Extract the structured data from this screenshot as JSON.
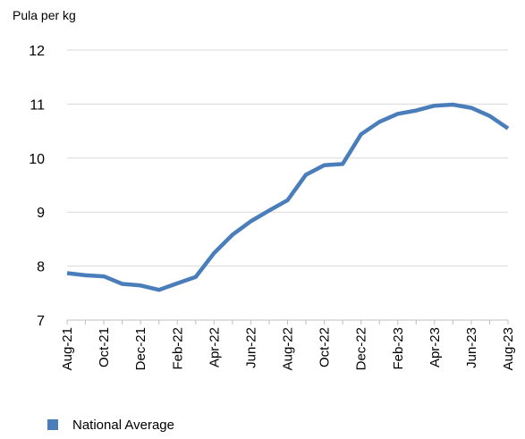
{
  "chart_data": {
    "type": "line",
    "title": "",
    "ylabel": "Pula per kg",
    "xlabel": "",
    "ylim": [
      7,
      12
    ],
    "yticks": [
      7,
      8,
      9,
      10,
      11,
      12
    ],
    "grid": true,
    "legend_position": "bottom-left",
    "x": [
      "Aug-21",
      "Sep-21",
      "Oct-21",
      "Nov-21",
      "Dec-21",
      "Jan-22",
      "Feb-22",
      "Mar-22",
      "Apr-22",
      "May-22",
      "Jun-22",
      "Jul-22",
      "Aug-22",
      "Sep-22",
      "Oct-22",
      "Nov-22",
      "Dec-22",
      "Jan-23",
      "Feb-23",
      "Mar-23",
      "Apr-23",
      "May-23",
      "Jun-23",
      "Jul-23",
      "Aug-23"
    ],
    "x_tick_labels": [
      "Aug-21",
      "Oct-21",
      "Dec-21",
      "Feb-22",
      "Apr-22",
      "Jun-22",
      "Aug-22",
      "Oct-22",
      "Dec-22",
      "Feb-23",
      "Apr-23",
      "Jun-23",
      "Aug-23"
    ],
    "series": [
      {
        "name": "National Average",
        "color": "#4a7ebb",
        "values": [
          7.87,
          7.83,
          7.81,
          7.67,
          7.64,
          7.56,
          7.68,
          7.8,
          8.24,
          8.58,
          8.83,
          9.03,
          9.22,
          9.69,
          9.87,
          9.89,
          10.44,
          10.67,
          10.82,
          10.88,
          10.97,
          10.99,
          10.93,
          10.78,
          10.55
        ]
      }
    ]
  }
}
